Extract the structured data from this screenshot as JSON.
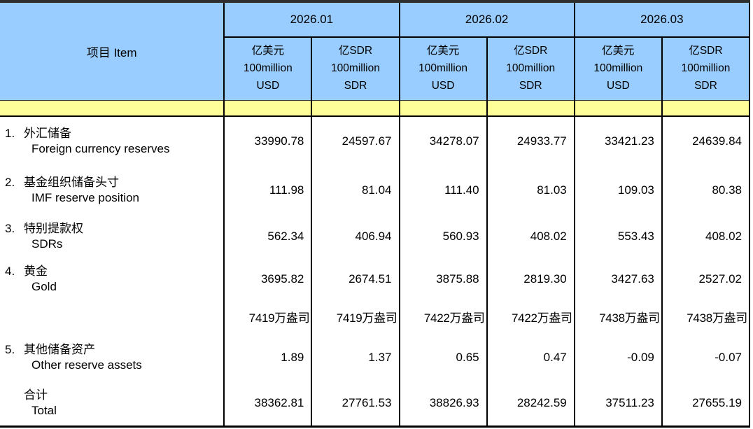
{
  "colors": {
    "header_blue": "#99CCFF",
    "band_yellow": "#FFFF99",
    "border_black": "#000000"
  },
  "table": {
    "item_header": "项目  Item",
    "month_groups": [
      {
        "label": "2026.01",
        "units": [
          "亿美元\n100million\nUSD",
          "亿SDR\n100million\nSDR"
        ]
      },
      {
        "label": "2026.02",
        "units": [
          "亿美元\n100million\nUSD",
          "亿SDR\n100million\nSDR"
        ]
      },
      {
        "label": "2026.03",
        "units": [
          "亿美元\n100million\nUSD",
          "亿SDR\n100million\nSDR"
        ]
      }
    ],
    "rows": [
      {
        "num": "1.",
        "zh": "外汇储备",
        "en": "Foreign currency reserves",
        "values": [
          "33990.78",
          "24597.67",
          "34278.07",
          "24933.77",
          "33421.23",
          "24639.84"
        ]
      },
      {
        "num": "2.",
        "zh": "基金组织储备头寸",
        "en": "IMF reserve position",
        "values": [
          "111.98",
          "81.04",
          "111.40",
          "81.03",
          "109.03",
          "80.38"
        ]
      },
      {
        "num": "3.",
        "zh": "特别提款权",
        "en": "SDRs",
        "values": [
          "562.34",
          "406.94",
          "560.93",
          "408.02",
          "553.43",
          "408.02"
        ]
      },
      {
        "num": "4.",
        "zh": "黄金",
        "en": "Gold",
        "values": [
          "3695.82",
          "2674.51",
          "3875.88",
          "2819.30",
          "3427.63",
          "2527.02"
        ]
      },
      {
        "num": "",
        "zh": "",
        "en": "",
        "values": [
          "7419万盎司",
          "7419万盎司",
          "7422万盎司",
          "7422万盎司",
          "7438万盎司",
          "7438万盎司"
        ]
      },
      {
        "num": "5.",
        "zh": "其他储备资产",
        "en": "Other reserve assets",
        "values": [
          "1.89",
          "1.37",
          "0.65",
          "0.47",
          "-0.09",
          "-0.07"
        ]
      },
      {
        "num": "",
        "zh": "合计",
        "en": "Total",
        "values": [
          "38362.81",
          "27761.53",
          "38826.93",
          "28242.59",
          "37511.23",
          "27655.19"
        ]
      }
    ]
  }
}
